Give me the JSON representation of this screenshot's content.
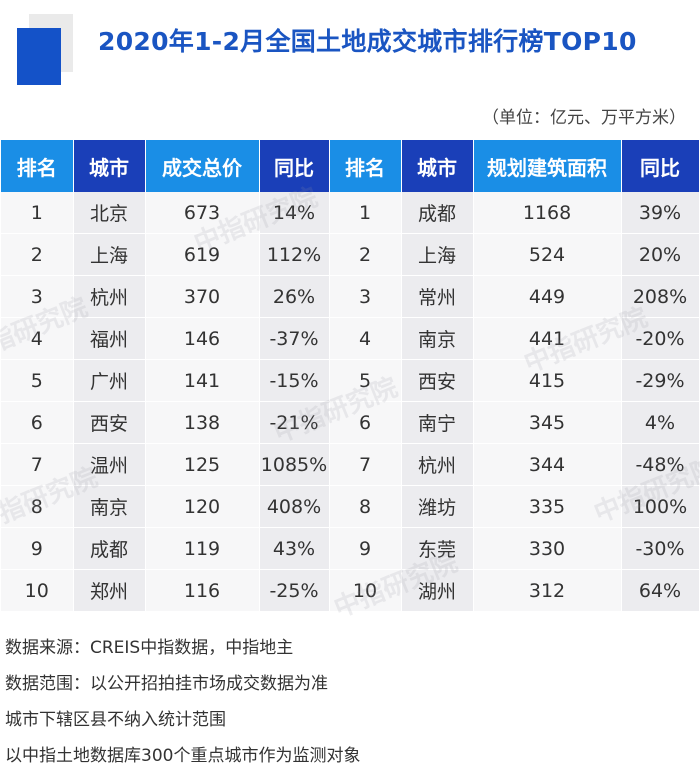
{
  "title": "2020年1-2月全国土地成交城市排行榜TOP10",
  "unit": "（单位：亿元、万平方米）",
  "headers": [
    "排名",
    "城市",
    "成交总价",
    "同比",
    "排名",
    "城市",
    "规划建筑面积",
    "同比"
  ],
  "rows": [
    [
      "1",
      "北京",
      "673",
      "14%",
      "1",
      "成都",
      "1168",
      "39%"
    ],
    [
      "2",
      "上海",
      "619",
      "112%",
      "2",
      "上海",
      "524",
      "20%"
    ],
    [
      "3",
      "杭州",
      "370",
      "26%",
      "3",
      "常州",
      "449",
      "208%"
    ],
    [
      "4",
      "福州",
      "146",
      "-37%",
      "4",
      "南京",
      "441",
      "-20%"
    ],
    [
      "5",
      "广州",
      "141",
      "-15%",
      "5",
      "西安",
      "415",
      "-29%"
    ],
    [
      "6",
      "西安",
      "138",
      "-21%",
      "6",
      "南宁",
      "345",
      "4%"
    ],
    [
      "7",
      "温州",
      "125",
      "1085%",
      "7",
      "杭州",
      "344",
      "-48%"
    ],
    [
      "8",
      "南京",
      "120",
      "408%",
      "8",
      "潍坊",
      "335",
      "100%"
    ],
    [
      "9",
      "成都",
      "119",
      "43%",
      "9",
      "东莞",
      "330",
      "-30%"
    ],
    [
      "10",
      "郑州",
      "116",
      "-25%",
      "10",
      "湖州",
      "312",
      "64%"
    ]
  ],
  "notes": [
    "数据来源：CREIS中指数据，中指地主",
    "数据范围：以公开招拍挂市场成交数据为准",
    "城市下辖区县不纳入统计范围",
    "以中指土地数据库300个重点城市作为监测对象"
  ],
  "watermark": "中指研究院",
  "colors": {
    "header_light": "#1a8ee6",
    "header_dark": "#1a3fb8",
    "title": "#1a55c2",
    "cell_light": "#f7f7f8",
    "cell_dark": "#ececef"
  }
}
